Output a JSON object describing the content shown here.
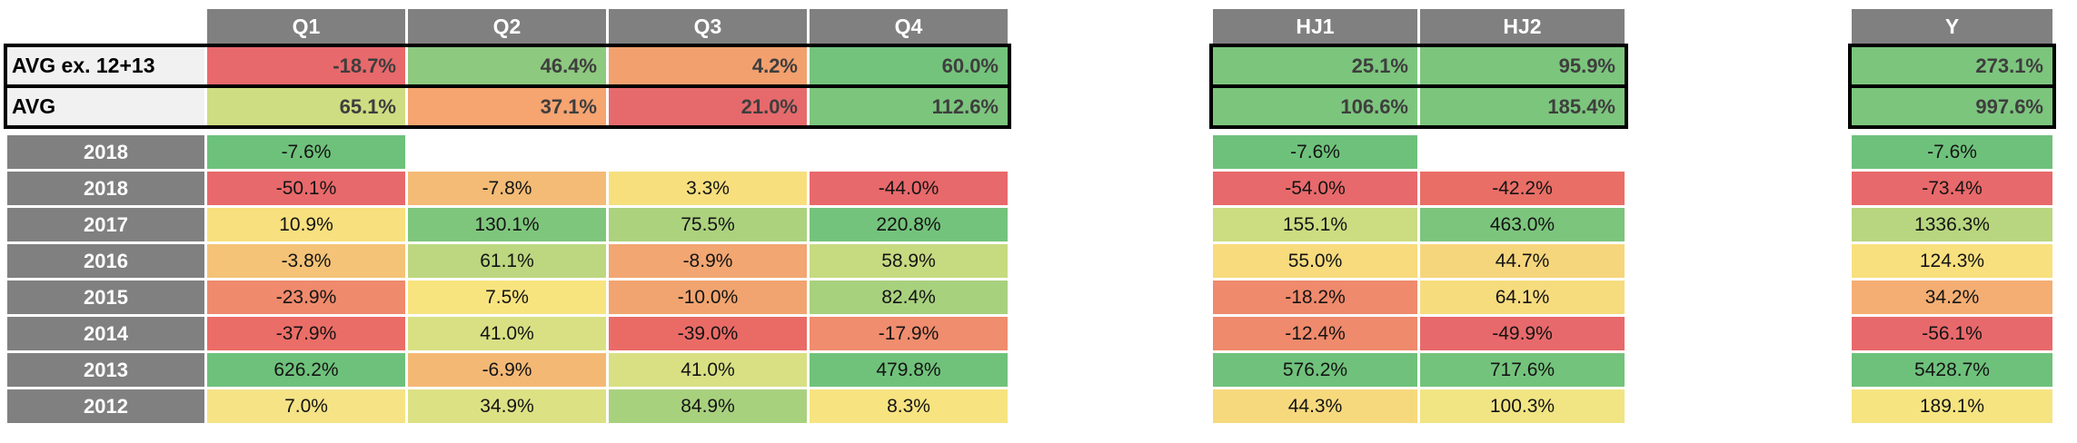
{
  "palette": {
    "header_bg": "#808080",
    "avg_label_bg": "#F1F1F1",
    "scale_red": "#E8696B",
    "scale_yellow": "#F8E17F",
    "scale_green": "#63BE7B",
    "border_black": "#000000"
  },
  "chart_data": {
    "type": "heatmap",
    "description_rows": [
      "AVG ex. 12+13",
      "AVG",
      "2018",
      "2018",
      "2017",
      "2016",
      "2015",
      "2014",
      "2013",
      "2012"
    ],
    "tables": [
      {
        "name": "quarters",
        "headers": [
          "Q1",
          "Q2",
          "Q3",
          "Q4"
        ],
        "avg_rows": [
          {
            "label": "AVG ex. 12+13",
            "cells": [
              {
                "v": "-18.7%",
                "c": "#E8696B"
              },
              {
                "v": "46.4%",
                "c": "#8DC97E"
              },
              {
                "v": "4.2%",
                "c": "#F2A06E"
              },
              {
                "v": "60.0%",
                "c": "#74C37C"
              }
            ]
          },
          {
            "label": "AVG",
            "cells": [
              {
                "v": "65.1%",
                "c": "#CEDD82"
              },
              {
                "v": "37.1%",
                "c": "#F6A470"
              },
              {
                "v": "21.0%",
                "c": "#E66A6C"
              },
              {
                "v": "112.6%",
                "c": "#7CC57D"
              }
            ]
          }
        ],
        "year_rows": [
          {
            "label": "2018",
            "cells": [
              {
                "v": "-7.6%",
                "c": "#6EC17B"
              },
              {
                "v": "",
                "c": ""
              },
              {
                "v": "",
                "c": ""
              },
              {
                "v": "",
                "c": ""
              }
            ]
          },
          {
            "label": "2018",
            "cells": [
              {
                "v": "-50.1%",
                "c": "#E8696B"
              },
              {
                "v": "-7.8%",
                "c": "#F4BB76"
              },
              {
                "v": "3.3%",
                "c": "#F7DF7E"
              },
              {
                "v": "-44.0%",
                "c": "#E8696B"
              }
            ]
          },
          {
            "label": "2017",
            "cells": [
              {
                "v": "10.9%",
                "c": "#F8E07E"
              },
              {
                "v": "130.1%",
                "c": "#7FC67D"
              },
              {
                "v": "75.5%",
                "c": "#ACD27E"
              },
              {
                "v": "220.8%",
                "c": "#74C37C"
              }
            ]
          },
          {
            "label": "2016",
            "cells": [
              {
                "v": "-3.8%",
                "c": "#F4C377"
              },
              {
                "v": "61.1%",
                "c": "#BCD77F"
              },
              {
                "v": "-8.9%",
                "c": "#F2A671"
              },
              {
                "v": "58.9%",
                "c": "#C6DA80"
              }
            ]
          },
          {
            "label": "2015",
            "cells": [
              {
                "v": "-23.9%",
                "c": "#EF8A6C"
              },
              {
                "v": "7.5%",
                "c": "#F8E47F"
              },
              {
                "v": "-10.0%",
                "c": "#F1A46F"
              },
              {
                "v": "82.4%",
                "c": "#A8D17E"
              }
            ]
          },
          {
            "label": "2014",
            "cells": [
              {
                "v": "-37.9%",
                "c": "#EB6D67"
              },
              {
                "v": "41.0%",
                "c": "#D8E083"
              },
              {
                "v": "-39.0%",
                "c": "#EA6B66"
              },
              {
                "v": "-17.9%",
                "c": "#EF8D6E"
              }
            ]
          },
          {
            "label": "2013",
            "cells": [
              {
                "v": "626.2%",
                "c": "#6EC17B"
              },
              {
                "v": "-6.9%",
                "c": "#F4B875"
              },
              {
                "v": "41.0%",
                "c": "#D8E083"
              },
              {
                "v": "479.8%",
                "c": "#70C27B"
              }
            ]
          },
          {
            "label": "2012",
            "cells": [
              {
                "v": "7.0%",
                "c": "#F5E386"
              },
              {
                "v": "34.9%",
                "c": "#DCE184"
              },
              {
                "v": "84.9%",
                "c": "#A8D17E"
              },
              {
                "v": "8.3%",
                "c": "#F7E380"
              }
            ]
          }
        ]
      },
      {
        "name": "half-years",
        "headers": [
          "HJ1",
          "HJ2"
        ],
        "avg_rows": [
          {
            "cells": [
              {
                "v": "25.1%",
                "c": "#7CC57D"
              },
              {
                "v": "95.9%",
                "c": "#7CC57D"
              }
            ]
          },
          {
            "cells": [
              {
                "v": "106.6%",
                "c": "#7CC57D"
              },
              {
                "v": "185.4%",
                "c": "#7CC57D"
              }
            ]
          }
        ],
        "year_rows": [
          {
            "cells": [
              {
                "v": "-7.6%",
                "c": "#6EC17B"
              },
              {
                "v": "",
                "c": ""
              }
            ]
          },
          {
            "cells": [
              {
                "v": "-54.0%",
                "c": "#E8696B"
              },
              {
                "v": "-42.2%",
                "c": "#E96E66"
              }
            ]
          },
          {
            "cells": [
              {
                "v": "155.1%",
                "c": "#CBDC81"
              },
              {
                "v": "463.0%",
                "c": "#7CC57D"
              }
            ]
          },
          {
            "cells": [
              {
                "v": "55.0%",
                "c": "#F7DB7D"
              },
              {
                "v": "44.7%",
                "c": "#F6D67C"
              }
            ]
          },
          {
            "cells": [
              {
                "v": "-18.2%",
                "c": "#EF8A6C"
              },
              {
                "v": "64.1%",
                "c": "#F7DC7E"
              }
            ]
          },
          {
            "cells": [
              {
                "v": "-12.4%",
                "c": "#EF8A6C"
              },
              {
                "v": "-49.9%",
                "c": "#E8696B"
              }
            ]
          },
          {
            "cells": [
              {
                "v": "576.2%",
                "c": "#6FC17B"
              },
              {
                "v": "717.6%",
                "c": "#74C37C"
              }
            ]
          },
          {
            "cells": [
              {
                "v": "44.3%",
                "c": "#F7D97D"
              },
              {
                "v": "100.3%",
                "c": "#F1E583"
              }
            ]
          }
        ]
      },
      {
        "name": "full-year",
        "headers": [
          "Y"
        ],
        "avg_rows": [
          {
            "cells": [
              {
                "v": "273.1%",
                "c": "#7CC57D"
              }
            ]
          },
          {
            "cells": [
              {
                "v": "997.6%",
                "c": "#7CC57D"
              }
            ]
          }
        ],
        "year_rows": [
          {
            "cells": [
              {
                "v": "-7.6%",
                "c": "#6EC17B"
              }
            ]
          },
          {
            "cells": [
              {
                "v": "-73.4%",
                "c": "#E8696B"
              }
            ]
          },
          {
            "cells": [
              {
                "v": "1336.3%",
                "c": "#B8D67F"
              }
            ]
          },
          {
            "cells": [
              {
                "v": "124.3%",
                "c": "#F8E07E"
              }
            ]
          },
          {
            "cells": [
              {
                "v": "34.2%",
                "c": "#F4AE73"
              }
            ]
          },
          {
            "cells": [
              {
                "v": "-56.1%",
                "c": "#E8696B"
              }
            ]
          },
          {
            "cells": [
              {
                "v": "5428.7%",
                "c": "#6EC17B"
              }
            ]
          },
          {
            "cells": [
              {
                "v": "189.1%",
                "c": "#F6E481"
              }
            ]
          }
        ]
      }
    ]
  }
}
